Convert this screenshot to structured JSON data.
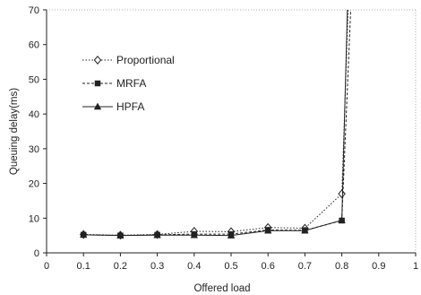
{
  "chart_data": {
    "type": "line",
    "title": "",
    "xlabel": "Offered load",
    "ylabel": "Queuing delay(ms)",
    "xlim": [
      0,
      1
    ],
    "ylim": [
      0,
      70
    ],
    "xticks": [
      "0",
      "0.1",
      "0.2",
      "0.3",
      "0.4",
      "0.5",
      "0.6",
      "0.7",
      "0.8",
      "0.9",
      "1"
    ],
    "yticks": [
      "0",
      "10",
      "20",
      "30",
      "40",
      "50",
      "60",
      "70"
    ],
    "grid": false,
    "legend_position": "upper-left",
    "series": [
      {
        "name": "Proportional",
        "marker": "diamond-open",
        "line_style": "dotted",
        "color": "#222222",
        "points": [
          [
            0.1,
            5.3
          ],
          [
            0.2,
            5.1
          ],
          [
            0.3,
            5.3
          ],
          [
            0.4,
            6.2
          ],
          [
            0.5,
            6.1
          ],
          [
            0.6,
            7.3
          ],
          [
            0.7,
            7.1
          ],
          [
            0.8,
            17.0
          ],
          [
            0.83,
            110
          ]
        ]
      },
      {
        "name": "MRFA",
        "marker": "square-filled",
        "line_style": "dashed",
        "color": "#222222",
        "points": [
          [
            0.1,
            5.2
          ],
          [
            0.2,
            5.0
          ],
          [
            0.3,
            5.2
          ],
          [
            0.4,
            5.4
          ],
          [
            0.5,
            5.4
          ],
          [
            0.6,
            6.6
          ],
          [
            0.7,
            6.5
          ],
          [
            0.8,
            9.3
          ],
          [
            0.84,
            110
          ]
        ]
      },
      {
        "name": "HPFA",
        "marker": "triangle-filled",
        "line_style": "solid",
        "color": "#222222",
        "points": [
          [
            0.1,
            5.2
          ],
          [
            0.2,
            5.0
          ],
          [
            0.3,
            5.1
          ],
          [
            0.4,
            5.1
          ],
          [
            0.5,
            5.0
          ],
          [
            0.6,
            6.4
          ],
          [
            0.7,
            6.4
          ],
          [
            0.8,
            9.4
          ],
          [
            0.825,
            110
          ]
        ]
      }
    ]
  }
}
